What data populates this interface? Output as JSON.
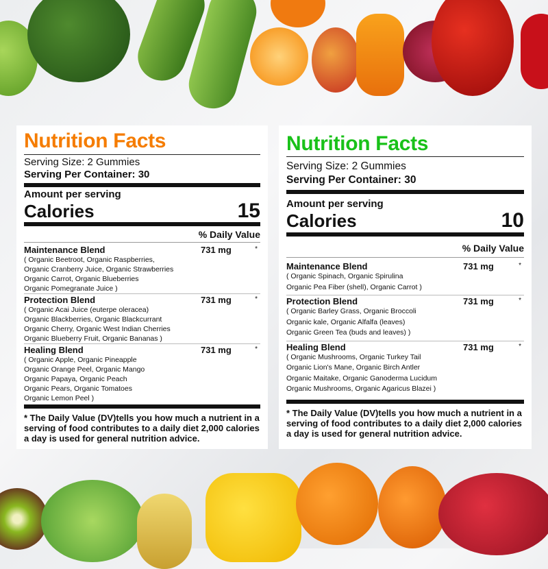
{
  "colors": {
    "left_title": "#f57c00",
    "right_title": "#19c119"
  },
  "left": {
    "title": "Nutrition Facts",
    "serving_size": "Serving Size: 2 Gummies",
    "servings_per_container": "Serving Per Container: 30",
    "amount_per_serving": "Amount per serving",
    "calories_label": "Calories",
    "calories": "15",
    "daily_value": "% Daily Value",
    "blends": [
      {
        "name": "Maintenance Blend",
        "amount": "731 mg",
        "dv": "*",
        "lines": [
          "( Organic Beetroot, Organic Raspberries,",
          "Organic Cranberry Juice, Organic Strawberries",
          "Organic Carrot, Organic Blueberries",
          "Organic Pomegranate Juice )"
        ]
      },
      {
        "name": "Protection Blend",
        "amount": "731 mg",
        "dv": "*",
        "lines": [
          "( Organic Acai Juice (euterpe oleracea)",
          "Organic Blackberries, Organic Blackcurrant",
          "Organic Cherry, Organic West Indian Cherries",
          "Organic Blueberry Fruit, Organic Bananas )"
        ]
      },
      {
        "name": "Healing Blend",
        "amount": "731 mg",
        "dv": "*",
        "lines": [
          "( Organic Apple, Organic Pineapple",
          "Organic Orange Peel, Organic Mango",
          "Organic Papaya, Organic Peach",
          "Organic Pears, Organic Tomatoes",
          "Organic Lemon Peel )"
        ]
      }
    ],
    "footnote": "* The Daily Value (DV)tells you how much a nutrient in a serving of food contributes to a daily diet 2,000 calories a day is used for general nutrition advice."
  },
  "right": {
    "title": "Nutrition Facts",
    "serving_size": "Serving Size: 2 Gummies",
    "servings_per_container": "Serving Per Container: 30",
    "amount_per_serving": "Amount per serving",
    "calories_label": "Calories",
    "calories": "10",
    "daily_value": "% Daily Value",
    "blends": [
      {
        "name": "Maintenance Blend",
        "amount": "731 mg",
        "dv": "*",
        "lines": [
          "( Organic Spinach, Organic Spirulina",
          "Organic Pea Fiber (shell), Organic Carrot )"
        ]
      },
      {
        "name": "Protection Blend",
        "amount": "731 mg",
        "dv": "*",
        "lines": [
          "( Organic Barley Grass, Organic Broccoli",
          "Organic kale, Organic Alfalfa (leaves)",
          "Organic Green Tea (buds and leaves) )"
        ]
      },
      {
        "name": "Healing Blend",
        "amount": "731 mg",
        "dv": "*",
        "lines": [
          "( Organic Mushrooms, Organic Turkey Tail",
          "Organic Lion's Mane, Organic Birch Antler",
          "Organic Maitake, Organic Ganoderma Lucidum",
          "Organic Mushrooms, Organic Agaricus Blazei )"
        ]
      }
    ],
    "footnote": "* The Daily Value (DV)tells you how much a nutrient in a serving of food contributes to a daily diet 2,000 calories a day is used for general nutrition advice."
  }
}
